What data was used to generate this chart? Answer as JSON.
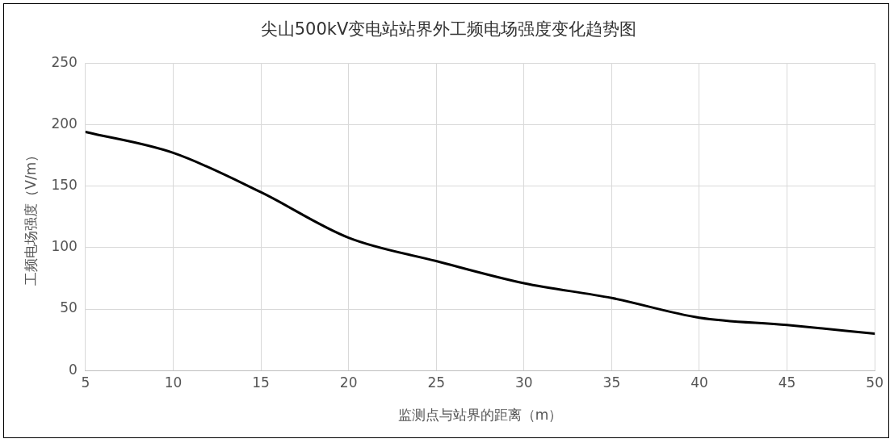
{
  "chart_data": {
    "type": "line",
    "title": "尖山500kV变电站站界外工频电场强度变化趋势图",
    "xlabel": "监测点与站界的距离（m）",
    "ylabel": "工频电场强度（V/m）",
    "x": [
      5,
      10,
      15,
      20,
      25,
      30,
      35,
      40,
      45,
      50
    ],
    "series": [
      {
        "color": "#000000",
        "values": [
          194,
          177,
          145,
          108,
          89,
          71,
          59,
          43,
          37,
          30
        ]
      }
    ],
    "xlim": [
      5,
      50
    ],
    "xticks": [
      5,
      10,
      15,
      20,
      25,
      30,
      35,
      40,
      45,
      50
    ],
    "ylim": [
      0,
      250
    ],
    "yticks": [
      0,
      50,
      100,
      150,
      200,
      250
    ],
    "grid": true,
    "legend": false,
    "marker": "none",
    "line_style": "solid"
  }
}
